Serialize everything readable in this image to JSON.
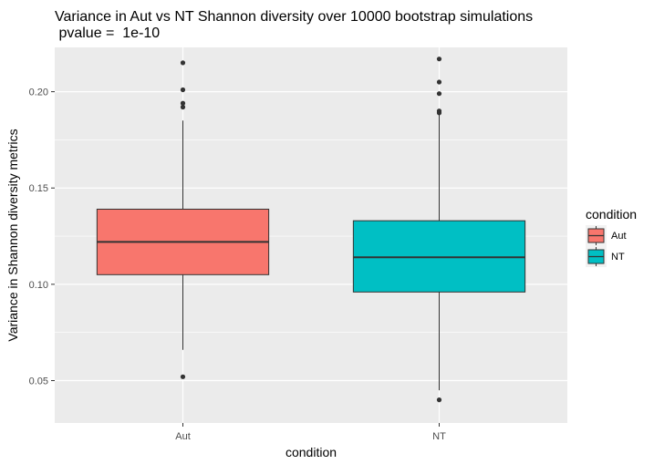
{
  "chart_data": {
    "type": "boxplot",
    "title": "Variance in Aut vs NT Shannon diversity over 10000 bootstrap simulations",
    "subtitle": " pvalue =  1e-10",
    "xlabel": "condition",
    "ylabel": "Variance in Shannon diversity metrics",
    "ylim": [
      0.028,
      0.223
    ],
    "yticks": [
      0.05,
      0.1,
      0.15,
      0.2
    ],
    "ytick_labels": [
      "0.05",
      "0.10",
      "0.15",
      "0.20"
    ],
    "grid": true,
    "legend_title": "condition",
    "legend_position": "right",
    "categories": [
      "Aut",
      "NT"
    ],
    "series": [
      {
        "name": "Aut",
        "color": "#F8766D",
        "whisker_low": 0.066,
        "q1": 0.105,
        "median": 0.122,
        "q3": 0.139,
        "whisker_high": 0.185,
        "outliers": [
          0.052,
          0.192,
          0.194,
          0.201,
          0.215
        ]
      },
      {
        "name": "NT",
        "color": "#00BFC4",
        "whisker_low": 0.045,
        "q1": 0.096,
        "median": 0.114,
        "q3": 0.133,
        "whisker_high": 0.188,
        "outliers": [
          0.04,
          0.189,
          0.19,
          0.199,
          0.205,
          0.217
        ]
      }
    ]
  }
}
